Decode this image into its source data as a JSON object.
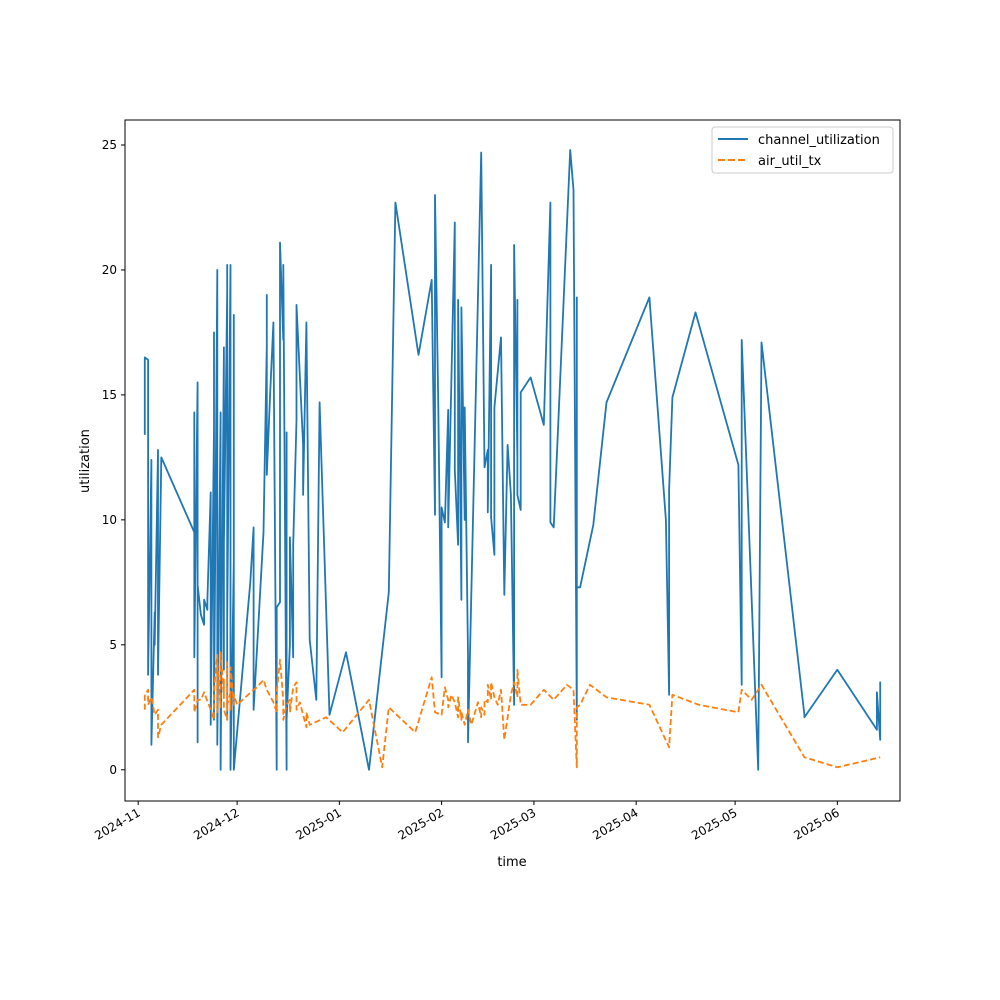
{
  "chart_data": {
    "type": "line",
    "xlabel": "time",
    "ylabel": "utilization",
    "x_ticks": [
      "2024-11",
      "2024-12",
      "2025-01",
      "2025-02",
      "2025-03",
      "2025-04",
      "2025-05",
      "2025-06"
    ],
    "y_ticks": [
      "0",
      "5",
      "10",
      "15",
      "20",
      "25"
    ],
    "xlim": [
      "2024-10-28",
      "2025-06-20"
    ],
    "ylim": [
      -1.25,
      26
    ],
    "grid": false,
    "legend": "top-right",
    "series": [
      {
        "name": "channel_utilization",
        "color": "#1f77b4",
        "style": "solid",
        "points": [
          [
            "2024-11-03",
            13.4
          ],
          [
            "2024-11-03",
            16.5
          ],
          [
            "2024-11-04",
            16.4
          ],
          [
            "2024-11-04",
            3.8
          ],
          [
            "2024-11-05",
            12.4
          ],
          [
            "2024-11-05",
            1.0
          ],
          [
            "2024-11-06",
            6.3
          ],
          [
            "2024-11-06",
            5.0
          ],
          [
            "2024-11-07",
            12.8
          ],
          [
            "2024-11-07",
            3.8
          ],
          [
            "2024-11-08",
            12.5
          ],
          [
            "2024-11-18",
            9.5
          ],
          [
            "2024-11-18",
            14.3
          ],
          [
            "2024-11-18",
            4.5
          ],
          [
            "2024-11-19",
            15.5
          ],
          [
            "2024-11-19",
            1.1
          ],
          [
            "2024-11-19",
            7.4
          ],
          [
            "2024-11-20",
            6.2
          ],
          [
            "2024-11-21",
            5.8
          ],
          [
            "2024-11-21",
            6.8
          ],
          [
            "2024-11-22",
            6.4
          ],
          [
            "2024-11-22",
            6.8
          ],
          [
            "2024-11-23",
            11.1
          ],
          [
            "2024-11-23",
            1.8
          ],
          [
            "2024-11-24",
            13.7
          ],
          [
            "2024-11-24",
            5.2
          ],
          [
            "2024-11-24",
            17.5
          ],
          [
            "2024-11-24",
            2.0
          ],
          [
            "2024-11-25",
            20.0
          ],
          [
            "2024-11-25",
            3.0
          ],
          [
            "2024-11-25",
            15.7
          ],
          [
            "2024-11-25",
            1.0
          ],
          [
            "2024-11-26",
            14.3
          ],
          [
            "2024-11-26",
            0.0
          ],
          [
            "2024-11-26",
            11.5
          ],
          [
            "2024-11-26",
            0.0
          ],
          [
            "2024-11-27",
            16.9
          ],
          [
            "2024-11-27",
            4.0
          ],
          [
            "2024-11-27",
            9.0
          ],
          [
            "2024-11-28",
            19.1
          ],
          [
            "2024-11-28",
            2.0
          ],
          [
            "2024-11-28",
            20.2
          ],
          [
            "2024-11-28",
            6.0
          ],
          [
            "2024-11-29",
            20.2
          ],
          [
            "2024-11-29",
            1.8
          ],
          [
            "2024-11-29",
            18.2
          ],
          [
            "2024-11-29",
            0.0
          ],
          [
            "2024-11-30",
            8.3
          ],
          [
            "2024-11-30",
            18.2
          ],
          [
            "2024-11-30",
            0.0
          ],
          [
            "2024-12-05",
            7.5
          ],
          [
            "2024-12-06",
            9.7
          ],
          [
            "2024-12-06",
            2.4
          ],
          [
            "2024-12-09",
            9.5
          ],
          [
            "2024-12-10",
            17.0
          ],
          [
            "2024-12-10",
            19.0
          ],
          [
            "2024-12-10",
            11.8
          ],
          [
            "2024-12-11",
            15.0
          ],
          [
            "2024-12-12",
            17.9
          ],
          [
            "2024-12-13",
            0.0
          ],
          [
            "2024-12-13",
            6.5
          ],
          [
            "2024-12-14",
            6.7
          ],
          [
            "2024-12-14",
            21.1
          ],
          [
            "2024-12-15",
            17.2
          ],
          [
            "2024-12-15",
            20.2
          ],
          [
            "2024-12-16",
            0.0
          ],
          [
            "2024-12-16",
            13.5
          ],
          [
            "2024-12-16",
            2.0
          ],
          [
            "2024-12-17",
            5.0
          ],
          [
            "2024-12-17",
            9.3
          ],
          [
            "2024-12-18",
            4.5
          ],
          [
            "2024-12-18",
            9.0
          ],
          [
            "2024-12-19",
            14.0
          ],
          [
            "2024-12-19",
            18.6
          ],
          [
            "2024-12-21",
            13.0
          ],
          [
            "2024-12-21",
            11.0
          ],
          [
            "2024-12-22",
            17.9
          ],
          [
            "2024-12-23",
            5.2
          ],
          [
            "2024-12-25",
            2.8
          ],
          [
            "2024-12-26",
            14.7
          ],
          [
            "2024-12-29",
            2.2
          ],
          [
            "2025-01-03",
            4.7
          ],
          [
            "2025-01-10",
            0.0
          ],
          [
            "2025-01-16",
            7.1
          ],
          [
            "2025-01-18",
            22.7
          ],
          [
            "2025-01-25",
            16.6
          ],
          [
            "2025-01-29",
            19.6
          ],
          [
            "2025-01-30",
            10.2
          ],
          [
            "2025-01-30",
            23.0
          ],
          [
            "2025-01-31",
            14.5
          ],
          [
            "2025-02-01",
            3.7
          ],
          [
            "2025-02-01",
            10.5
          ],
          [
            "2025-02-02",
            9.9
          ],
          [
            "2025-02-03",
            14.4
          ],
          [
            "2025-02-03",
            9.7
          ],
          [
            "2025-02-05",
            21.9
          ],
          [
            "2025-02-05",
            12.0
          ],
          [
            "2025-02-06",
            9.0
          ],
          [
            "2025-02-06",
            18.8
          ],
          [
            "2025-02-07",
            6.8
          ],
          [
            "2025-02-07",
            18.5
          ],
          [
            "2025-02-08",
            10.0
          ],
          [
            "2025-02-08",
            14.5
          ],
          [
            "2025-02-09",
            4.6
          ],
          [
            "2025-02-09",
            1.1
          ],
          [
            "2025-02-13",
            24.7
          ],
          [
            "2025-02-14",
            12.1
          ],
          [
            "2025-02-15",
            12.8
          ],
          [
            "2025-02-15",
            10.3
          ],
          [
            "2025-02-16",
            20.2
          ],
          [
            "2025-02-16",
            10.1
          ],
          [
            "2025-02-17",
            8.6
          ],
          [
            "2025-02-17",
            14.5
          ],
          [
            "2025-02-19",
            17.3
          ],
          [
            "2025-02-20",
            7.0
          ],
          [
            "2025-02-21",
            13.0
          ],
          [
            "2025-02-22",
            11.0
          ],
          [
            "2025-02-23",
            2.6
          ],
          [
            "2025-02-23",
            21.0
          ],
          [
            "2025-02-24",
            12.5
          ],
          [
            "2025-02-24",
            18.8
          ],
          [
            "2025-02-24",
            11.0
          ],
          [
            "2025-02-25",
            10.4
          ],
          [
            "2025-02-25",
            15.1
          ],
          [
            "2025-02-28",
            15.7
          ],
          [
            "2025-03-04",
            13.8
          ],
          [
            "2025-03-06",
            22.7
          ],
          [
            "2025-03-06",
            9.9
          ],
          [
            "2025-03-07",
            9.7
          ],
          [
            "2025-03-08",
            12.7
          ],
          [
            "2025-03-12",
            24.8
          ],
          [
            "2025-03-13",
            23.2
          ],
          [
            "2025-03-14",
            2.0
          ],
          [
            "2025-03-14",
            18.9
          ],
          [
            "2025-03-14",
            7.3
          ],
          [
            "2025-03-15",
            7.3
          ],
          [
            "2025-03-19",
            9.8
          ],
          [
            "2025-03-23",
            14.7
          ],
          [
            "2025-04-05",
            18.9
          ],
          [
            "2025-04-10",
            10.0
          ],
          [
            "2025-04-11",
            3.0
          ],
          [
            "2025-04-11",
            11.2
          ],
          [
            "2025-04-12",
            14.9
          ],
          [
            "2025-04-19",
            18.3
          ],
          [
            "2025-05-02",
            12.2
          ],
          [
            "2025-05-03",
            3.4
          ],
          [
            "2025-05-03",
            17.2
          ],
          [
            "2025-05-08",
            0.0
          ],
          [
            "2025-05-09",
            17.1
          ],
          [
            "2025-05-22",
            2.2
          ],
          [
            "2025-05-22",
            2.1
          ],
          [
            "2025-06-01",
            4.0
          ],
          [
            "2025-06-13",
            1.6
          ],
          [
            "2025-06-13",
            3.1
          ],
          [
            "2025-06-14",
            1.2
          ],
          [
            "2025-06-14",
            3.5
          ],
          [
            "2025-06-14",
            1.9
          ]
        ]
      },
      {
        "name": "air_util_tx",
        "color": "#ff7f0e",
        "style": "dashed",
        "points": [
          [
            "2024-11-03",
            2.4
          ],
          [
            "2024-11-03",
            3.0
          ],
          [
            "2024-11-04",
            3.2
          ],
          [
            "2024-11-04",
            2.6
          ],
          [
            "2024-11-05",
            2.9
          ],
          [
            "2024-11-06",
            2.2
          ],
          [
            "2024-11-07",
            2.4
          ],
          [
            "2024-11-07",
            1.3
          ],
          [
            "2024-11-08",
            1.8
          ],
          [
            "2024-11-18",
            3.2
          ],
          [
            "2024-11-18",
            2.3
          ],
          [
            "2024-11-19",
            2.8
          ],
          [
            "2024-11-20",
            2.8
          ],
          [
            "2024-11-21",
            3.1
          ],
          [
            "2024-11-23",
            2.4
          ],
          [
            "2024-11-24",
            2.0
          ],
          [
            "2024-11-24",
            2.8
          ],
          [
            "2024-11-24",
            3.2
          ],
          [
            "2024-11-25",
            4.6
          ],
          [
            "2024-11-25",
            2.3
          ],
          [
            "2024-11-25",
            4.3
          ],
          [
            "2024-11-26",
            2.5
          ],
          [
            "2024-11-26",
            3.8
          ],
          [
            "2024-11-26",
            4.7
          ],
          [
            "2024-11-27",
            3.0
          ],
          [
            "2024-11-27",
            3.6
          ],
          [
            "2024-11-27",
            2.4
          ],
          [
            "2024-11-28",
            2.0
          ],
          [
            "2024-11-28",
            4.3
          ],
          [
            "2024-11-28",
            2.6
          ],
          [
            "2024-11-29",
            3.1
          ],
          [
            "2024-11-29",
            2.4
          ],
          [
            "2024-11-29",
            4.1
          ],
          [
            "2024-11-30",
            2.6
          ],
          [
            "2024-11-30",
            3.0
          ],
          [
            "2024-12-01",
            2.6
          ],
          [
            "2024-12-06",
            3.2
          ],
          [
            "2024-12-07",
            3.3
          ],
          [
            "2024-12-09",
            3.6
          ],
          [
            "2024-12-10",
            3.2
          ],
          [
            "2024-12-12",
            2.7
          ],
          [
            "2024-12-13",
            2.3
          ],
          [
            "2024-12-13",
            3.1
          ],
          [
            "2024-12-14",
            4.4
          ],
          [
            "2024-12-15",
            2.8
          ],
          [
            "2024-12-15",
            2.0
          ],
          [
            "2024-12-16",
            2.6
          ],
          [
            "2024-12-17",
            2.8
          ],
          [
            "2024-12-17",
            2.3
          ],
          [
            "2024-12-18",
            3.3
          ],
          [
            "2024-12-19",
            3.5
          ],
          [
            "2024-12-19",
            2.4
          ],
          [
            "2024-12-20",
            2.7
          ],
          [
            "2024-12-22",
            1.7
          ],
          [
            "2024-12-22",
            2.3
          ],
          [
            "2024-12-23",
            1.8
          ],
          [
            "2024-12-28",
            2.1
          ],
          [
            "2025-01-02",
            1.5
          ],
          [
            "2025-01-10",
            2.8
          ],
          [
            "2025-01-14",
            0.1
          ],
          [
            "2025-01-16",
            2.5
          ],
          [
            "2025-01-24",
            1.5
          ],
          [
            "2025-01-29",
            3.7
          ],
          [
            "2025-01-30",
            2.3
          ],
          [
            "2025-02-01",
            2.2
          ],
          [
            "2025-02-02",
            3.3
          ],
          [
            "2025-02-03",
            2.8
          ],
          [
            "2025-02-03",
            2.5
          ],
          [
            "2025-02-04",
            3.0
          ],
          [
            "2025-02-05",
            2.7
          ],
          [
            "2025-02-06",
            2.1
          ],
          [
            "2025-02-06",
            2.9
          ],
          [
            "2025-02-07",
            2.0
          ],
          [
            "2025-02-07",
            2.3
          ],
          [
            "2025-02-08",
            1.8
          ],
          [
            "2025-02-09",
            2.4
          ],
          [
            "2025-02-10",
            1.8
          ],
          [
            "2025-02-12",
            2.7
          ],
          [
            "2025-02-13",
            2.1
          ],
          [
            "2025-02-13",
            2.5
          ],
          [
            "2025-02-14",
            2.2
          ],
          [
            "2025-02-14",
            2.8
          ],
          [
            "2025-02-15",
            2.7
          ],
          [
            "2025-02-15",
            3.4
          ],
          [
            "2025-02-16",
            2.8
          ],
          [
            "2025-02-16",
            3.5
          ],
          [
            "2025-02-17",
            2.9
          ],
          [
            "2025-02-18",
            2.6
          ],
          [
            "2025-02-19",
            3.2
          ],
          [
            "2025-02-20",
            1.2
          ],
          [
            "2025-02-22",
            3.0
          ],
          [
            "2025-02-23",
            3.5
          ],
          [
            "2025-02-24",
            2.9
          ],
          [
            "2025-02-24",
            4.0
          ],
          [
            "2025-02-25",
            2.6
          ],
          [
            "2025-02-28",
            2.6
          ],
          [
            "2025-03-04",
            3.2
          ],
          [
            "2025-03-07",
            2.8
          ],
          [
            "2025-03-11",
            3.4
          ],
          [
            "2025-03-13",
            3.2
          ],
          [
            "2025-03-14",
            0.1
          ],
          [
            "2025-03-14",
            2.5
          ],
          [
            "2025-03-15",
            2.6
          ],
          [
            "2025-03-18",
            3.4
          ],
          [
            "2025-03-23",
            2.9
          ],
          [
            "2025-04-05",
            2.6
          ],
          [
            "2025-04-11",
            0.9
          ],
          [
            "2025-04-12",
            3.0
          ],
          [
            "2025-04-20",
            2.6
          ],
          [
            "2025-05-02",
            2.3
          ],
          [
            "2025-05-03",
            3.2
          ],
          [
            "2025-05-06",
            2.8
          ],
          [
            "2025-05-09",
            3.4
          ],
          [
            "2025-05-22",
            0.5
          ],
          [
            "2025-06-01",
            0.1
          ],
          [
            "2025-06-14",
            0.5
          ]
        ]
      }
    ]
  }
}
